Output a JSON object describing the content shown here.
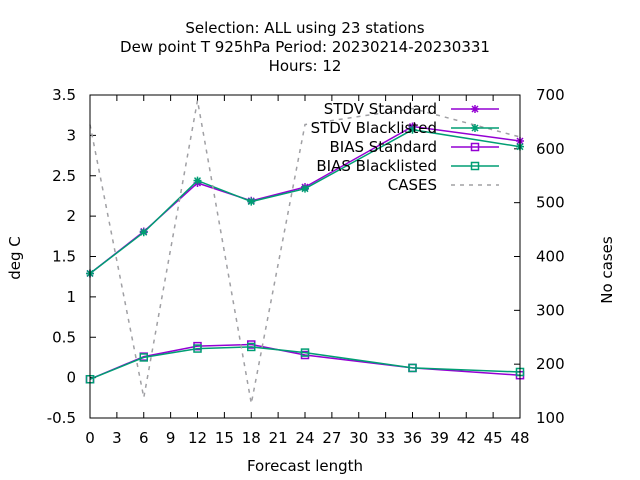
{
  "chart_data": {
    "type": "line",
    "title_lines": [
      "Selection: ALL using    23 stations",
      "Dew point T 925hPa   Period: 20230214-20230331",
      "Hours:  12"
    ],
    "xlabel": "Forecast length",
    "ylabel": "deg C",
    "y2label": "No cases",
    "x_ticks": [
      0,
      3,
      6,
      9,
      12,
      15,
      18,
      21,
      24,
      27,
      30,
      33,
      36,
      39,
      42,
      45,
      48
    ],
    "y_ticks": [
      -0.5,
      0,
      0.5,
      1,
      1.5,
      2,
      2.5,
      3,
      3.5
    ],
    "y2_ticks": [
      100,
      200,
      300,
      400,
      500,
      600,
      700
    ],
    "xlim": [
      0,
      48
    ],
    "ylim": [
      -0.5,
      3.5
    ],
    "y2lim": [
      100,
      700
    ],
    "grid": false,
    "legend_position": "top-right",
    "series": [
      {
        "name": "STDV Standard",
        "axis": "y",
        "color": "#9400d3",
        "marker": "star",
        "dashed": false,
        "x": [
          0,
          6,
          12,
          18,
          24,
          36,
          48
        ],
        "y": [
          1.29,
          1.81,
          2.41,
          2.19,
          2.36,
          3.11,
          2.93
        ]
      },
      {
        "name": "STDV Blacklisted",
        "axis": "y",
        "color": "#009e73",
        "marker": "star",
        "dashed": false,
        "x": [
          0,
          6,
          12,
          18,
          24,
          36,
          48
        ],
        "y": [
          1.29,
          1.8,
          2.44,
          2.18,
          2.34,
          3.07,
          2.86
        ]
      },
      {
        "name": "BIAS Standard",
        "axis": "y",
        "color": "#9400d3",
        "marker": "square",
        "dashed": false,
        "x": [
          0,
          6,
          12,
          18,
          24,
          36,
          48
        ],
        "y": [
          -0.02,
          0.26,
          0.39,
          0.41,
          0.28,
          0.12,
          0.03
        ]
      },
      {
        "name": "BIAS Blacklisted",
        "axis": "y",
        "color": "#009e73",
        "marker": "square",
        "dashed": false,
        "x": [
          0,
          6,
          12,
          18,
          24,
          36,
          48
        ],
        "y": [
          -0.02,
          0.25,
          0.36,
          0.38,
          0.31,
          0.12,
          0.07
        ]
      },
      {
        "name": "CASES",
        "axis": "y2",
        "color": "#a0a0a4",
        "marker": "none",
        "dashed": true,
        "x": [
          0,
          6,
          12,
          18,
          24,
          36,
          48
        ],
        "y": [
          645,
          138,
          690,
          127,
          645,
          675,
          622
        ]
      }
    ]
  }
}
